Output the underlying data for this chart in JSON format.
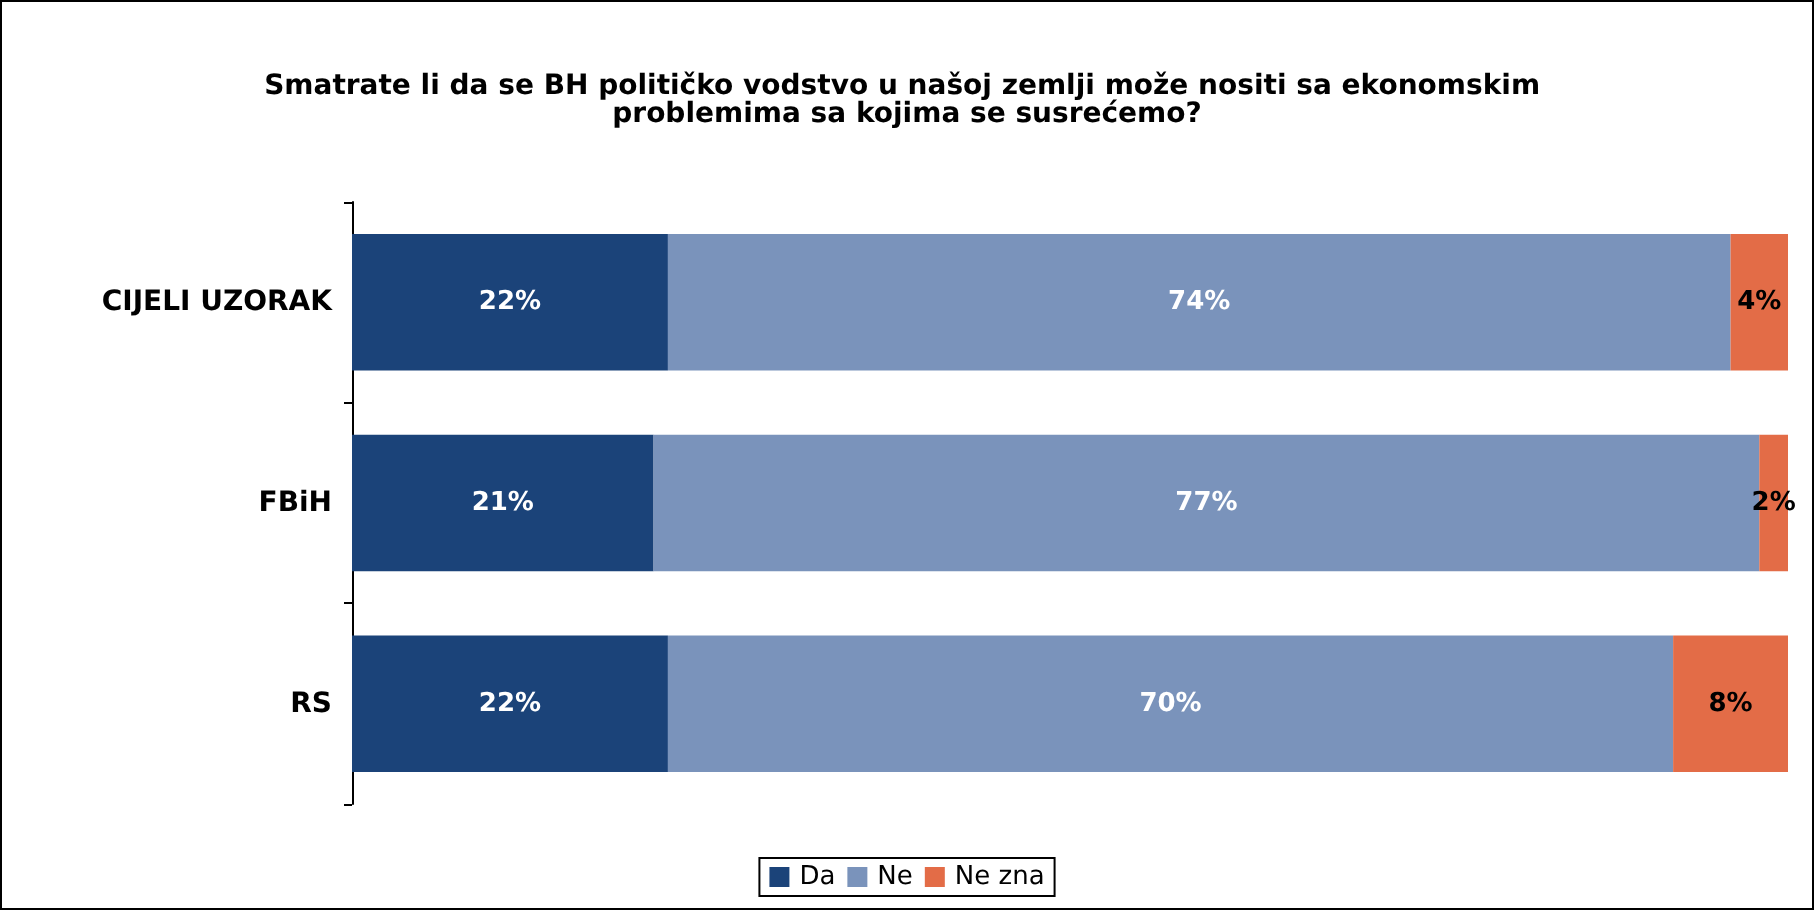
{
  "chart_data": {
    "type": "bar",
    "orientation": "horizontal",
    "stacked": true,
    "title": "Smatrate li da se BH političko vodstvo u našoj zemlji može nositi sa ekonomskim problemima sa kojima se susrećemo?",
    "categories": [
      "CIJELI UZORAK",
      "FBiH",
      "RS"
    ],
    "series": [
      {
        "name": "Da",
        "color": "#1b4379",
        "values": [
          22,
          21,
          22
        ],
        "value_labels": [
          "22%",
          "21%",
          "22%"
        ]
      },
      {
        "name": "Ne",
        "color": "#7a93bb",
        "values": [
          74,
          77,
          70
        ],
        "value_labels": [
          "74%",
          "77%",
          "70%"
        ]
      },
      {
        "name": "Ne zna",
        "color": "#e36c47",
        "values": [
          4,
          2,
          8
        ],
        "value_labels": [
          "4%",
          "2%",
          "8%"
        ]
      }
    ],
    "xlim": [
      0,
      100
    ],
    "tick_labels": "y",
    "legend": "bottom"
  }
}
